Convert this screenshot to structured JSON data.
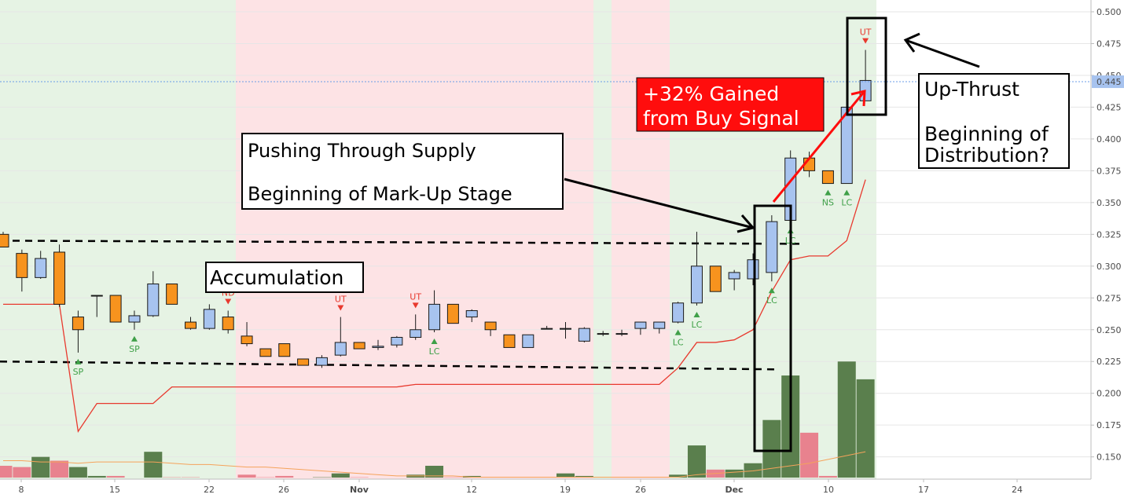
{
  "chart_data": {
    "type": "candlestick",
    "title": "",
    "ylim": [
      0.13,
      0.505
    ],
    "yticks": [
      "0.150",
      "0.175",
      "0.200",
      "0.225",
      "0.250",
      "0.275",
      "0.300",
      "0.325",
      "0.350",
      "0.375",
      "0.400",
      "0.425",
      "0.450",
      "0.475",
      "0.500"
    ],
    "xticks": [
      {
        "label": "8",
        "bold": false
      },
      {
        "label": "15",
        "bold": false
      },
      {
        "label": "22",
        "bold": false
      },
      {
        "label": "26",
        "bold": false
      },
      {
        "label": "Nov",
        "bold": true
      },
      {
        "label": "12",
        "bold": false
      },
      {
        "label": "19",
        "bold": false
      },
      {
        "label": "26",
        "bold": false
      },
      {
        "label": "Dec",
        "bold": true
      },
      {
        "label": "10",
        "bold": false
      },
      {
        "label": "17",
        "bold": false
      },
      {
        "label": "24",
        "bold": false
      }
    ],
    "price_marker": "0.445",
    "colors": {
      "up": "#a7c3ef",
      "down": "#f7931e",
      "vol_up": "#5a7f4d",
      "vol_down": "#e8828e",
      "stop": "#e8392e",
      "vol_ma": "#f5a35b",
      "bg_green": "#e6f3e4",
      "bg_red": "#fde3e5"
    },
    "candles": [
      {
        "o": 0.325,
        "h": 0.327,
        "l": 0.315,
        "c": 0.315,
        "vol": 0.143,
        "vup": false
      },
      {
        "o": 0.31,
        "h": 0.313,
        "l": 0.28,
        "c": 0.291,
        "vol": 0.142,
        "vup": false
      },
      {
        "o": 0.291,
        "h": 0.312,
        "l": 0.29,
        "c": 0.306,
        "vol": 0.15,
        "vup": true
      },
      {
        "o": 0.311,
        "h": 0.317,
        "l": 0.268,
        "c": 0.27,
        "vol": 0.147,
        "vup": false
      },
      {
        "o": 0.26,
        "h": 0.265,
        "l": 0.232,
        "c": 0.25,
        "vol": 0.142,
        "vup": true
      },
      {
        "o": 0.277,
        "h": 0.277,
        "l": 0.26,
        "c": 0.277,
        "vol": 0.135,
        "vup": true
      },
      {
        "o": 0.277,
        "h": 0.277,
        "l": 0.256,
        "c": 0.256,
        "vol": 0.135,
        "vup": false
      },
      {
        "o": 0.256,
        "h": 0.265,
        "l": 0.25,
        "c": 0.261,
        "vol": 0.133,
        "vup": true
      },
      {
        "o": 0.261,
        "h": 0.296,
        "l": 0.26,
        "c": 0.286,
        "vol": 0.154,
        "vup": true
      },
      {
        "o": 0.286,
        "h": 0.286,
        "l": 0.27,
        "c": 0.27,
        "vol": 0.134,
        "vup": false
      },
      {
        "o": 0.256,
        "h": 0.26,
        "l": 0.25,
        "c": 0.251,
        "vol": 0.134,
        "vup": false
      },
      {
        "o": 0.251,
        "h": 0.27,
        "l": 0.25,
        "c": 0.266,
        "vol": 0.133,
        "vup": true
      },
      {
        "o": 0.26,
        "h": 0.265,
        "l": 0.247,
        "c": 0.25,
        "vol": 0.132,
        "vup": false
      },
      {
        "o": 0.245,
        "h": 0.256,
        "l": 0.237,
        "c": 0.239,
        "vol": 0.136,
        "vup": false
      },
      {
        "o": 0.235,
        "h": 0.235,
        "l": 0.229,
        "c": 0.229,
        "vol": 0.134,
        "vup": false
      },
      {
        "o": 0.239,
        "h": 0.239,
        "l": 0.229,
        "c": 0.229,
        "vol": 0.135,
        "vup": false
      },
      {
        "o": 0.227,
        "h": 0.227,
        "l": 0.222,
        "c": 0.222,
        "vol": 0.132,
        "vup": false
      },
      {
        "o": 0.222,
        "h": 0.23,
        "l": 0.22,
        "c": 0.228,
        "vol": 0.134,
        "vup": true
      },
      {
        "o": 0.23,
        "h": 0.26,
        "l": 0.229,
        "c": 0.24,
        "vol": 0.137,
        "vup": true
      },
      {
        "o": 0.24,
        "h": 0.24,
        "l": 0.235,
        "c": 0.235,
        "vol": 0.134,
        "vup": false
      },
      {
        "o": 0.236,
        "h": 0.242,
        "l": 0.234,
        "c": 0.237,
        "vol": 0.132,
        "vup": true
      },
      {
        "o": 0.238,
        "h": 0.245,
        "l": 0.236,
        "c": 0.244,
        "vol": 0.133,
        "vup": true
      },
      {
        "o": 0.244,
        "h": 0.262,
        "l": 0.242,
        "c": 0.25,
        "vol": 0.136,
        "vup": true
      },
      {
        "o": 0.25,
        "h": 0.281,
        "l": 0.248,
        "c": 0.27,
        "vol": 0.143,
        "vup": true
      },
      {
        "o": 0.27,
        "h": 0.27,
        "l": 0.255,
        "c": 0.255,
        "vol": 0.134,
        "vup": false
      },
      {
        "o": 0.26,
        "h": 0.266,
        "l": 0.256,
        "c": 0.265,
        "vol": 0.135,
        "vup": true
      },
      {
        "o": 0.256,
        "h": 0.256,
        "l": 0.245,
        "c": 0.25,
        "vol": 0.134,
        "vup": false
      },
      {
        "o": 0.246,
        "h": 0.246,
        "l": 0.236,
        "c": 0.236,
        "vol": 0.132,
        "vup": false
      },
      {
        "o": 0.236,
        "h": 0.246,
        "l": 0.236,
        "c": 0.246,
        "vol": 0.132,
        "vup": true
      },
      {
        "o": 0.251,
        "h": 0.253,
        "l": 0.251,
        "c": 0.251,
        "vol": 0.133,
        "vup": true
      },
      {
        "o": 0.251,
        "h": 0.256,
        "l": 0.243,
        "c": 0.251,
        "vol": 0.137,
        "vup": true
      },
      {
        "o": 0.241,
        "h": 0.252,
        "l": 0.24,
        "c": 0.251,
        "vol": 0.135,
        "vup": true
      },
      {
        "o": 0.247,
        "h": 0.249,
        "l": 0.245,
        "c": 0.247,
        "vol": 0.133,
        "vup": true
      },
      {
        "o": 0.247,
        "h": 0.25,
        "l": 0.245,
        "c": 0.247,
        "vol": 0.134,
        "vup": true
      },
      {
        "o": 0.251,
        "h": 0.256,
        "l": 0.246,
        "c": 0.256,
        "vol": 0.133,
        "vup": true
      },
      {
        "o": 0.251,
        "h": 0.256,
        "l": 0.247,
        "c": 0.256,
        "vol": 0.133,
        "vup": true
      },
      {
        "o": 0.256,
        "h": 0.272,
        "l": 0.255,
        "c": 0.271,
        "vol": 0.136,
        "vup": true
      },
      {
        "o": 0.271,
        "h": 0.327,
        "l": 0.269,
        "c": 0.3,
        "vol": 0.159,
        "vup": true
      },
      {
        "o": 0.3,
        "h": 0.3,
        "l": 0.28,
        "c": 0.28,
        "vol": 0.14,
        "vup": false
      },
      {
        "o": 0.29,
        "h": 0.297,
        "l": 0.281,
        "c": 0.295,
        "vol": 0.14,
        "vup": true
      },
      {
        "o": 0.29,
        "h": 0.31,
        "l": 0.285,
        "c": 0.305,
        "vol": 0.145,
        "vup": true
      },
      {
        "o": 0.295,
        "h": 0.34,
        "l": 0.288,
        "c": 0.335,
        "vol": 0.179,
        "vup": true
      },
      {
        "o": 0.336,
        "h": 0.391,
        "l": 0.335,
        "c": 0.385,
        "vol": 0.214,
        "vup": true
      },
      {
        "o": 0.385,
        "h": 0.39,
        "l": 0.37,
        "c": 0.375,
        "vol": 0.169,
        "vup": false
      },
      {
        "o": 0.375,
        "h": 0.375,
        "l": 0.365,
        "c": 0.365,
        "vol": 0.135,
        "vup": false
      },
      {
        "o": 0.365,
        "h": 0.426,
        "l": 0.365,
        "c": 0.425,
        "vol": 0.225,
        "vup": true
      },
      {
        "o": 0.43,
        "h": 0.47,
        "l": 0.43,
        "c": 0.446,
        "vol": 0.211,
        "vup": true
      }
    ],
    "stop_line": [
      0.27,
      0.27,
      0.27,
      0.27,
      0.17,
      0.192,
      0.192,
      0.192,
      0.192,
      0.205,
      0.205,
      0.205,
      0.205,
      0.205,
      0.205,
      0.205,
      0.205,
      0.205,
      0.205,
      0.205,
      0.205,
      0.205,
      0.207,
      0.207,
      0.207,
      0.207,
      0.207,
      0.207,
      0.207,
      0.207,
      0.207,
      0.207,
      0.207,
      0.207,
      0.207,
      0.207,
      0.22,
      0.24,
      0.24,
      0.242,
      0.25,
      0.28,
      0.305,
      0.308,
      0.308,
      0.32,
      0.368
    ],
    "vol_ma": [
      0.147,
      0.147,
      0.146,
      0.146,
      0.145,
      0.146,
      0.146,
      0.146,
      0.146,
      0.145,
      0.144,
      0.144,
      0.143,
      0.142,
      0.142,
      0.141,
      0.14,
      0.139,
      0.138,
      0.137,
      0.136,
      0.135,
      0.135,
      0.135,
      0.135,
      0.134,
      0.134,
      0.134,
      0.134,
      0.134,
      0.134,
      0.134,
      0.134,
      0.134,
      0.134,
      0.134,
      0.134,
      0.136,
      0.137,
      0.138,
      0.139,
      0.141,
      0.143,
      0.145,
      0.148,
      0.151,
      0.154
    ],
    "resistance": 0.32,
    "support": 0.225,
    "signals": [
      {
        "i": 4,
        "label": "SP",
        "dir": "up",
        "color": "#3fa048"
      },
      {
        "i": 7,
        "label": "SP",
        "dir": "up",
        "color": "#3fa048"
      },
      {
        "i": 12,
        "label": "ND",
        "dir": "down",
        "color": "#e8392e"
      },
      {
        "i": 18,
        "label": "UT",
        "dir": "down",
        "color": "#e8392e"
      },
      {
        "i": 22,
        "label": "UT",
        "dir": "down",
        "color": "#e8392e"
      },
      {
        "i": 23,
        "label": "LC",
        "dir": "up",
        "color": "#3fa048"
      },
      {
        "i": 36,
        "label": "LC",
        "dir": "up",
        "color": "#3fa048"
      },
      {
        "i": 37,
        "label": "LC",
        "dir": "up",
        "color": "#3fa048"
      },
      {
        "i": 41,
        "label": "LC",
        "dir": "up",
        "color": "#3fa048"
      },
      {
        "i": 42,
        "label": "LC",
        "dir": "up",
        "color": "#3fa048"
      },
      {
        "i": 44,
        "label": "NS",
        "dir": "up",
        "color": "#3fa048"
      },
      {
        "i": 45,
        "label": "LC",
        "dir": "up",
        "color": "#3fa048"
      },
      {
        "i": 46,
        "label": "UT",
        "dir": "down",
        "color": "#e8392e"
      }
    ],
    "annotations": {
      "accumulation": "Accumulation",
      "push_line1": "Pushing Through Supply",
      "push_line2": "Beginning of Mark-Up Stage",
      "gain_line1": "+32% Gained",
      "gain_line2": "from Buy Signal",
      "ut_line1": "Up-Thrust",
      "ut_line2": "Beginning of",
      "ut_line3": "Distribution?"
    }
  }
}
